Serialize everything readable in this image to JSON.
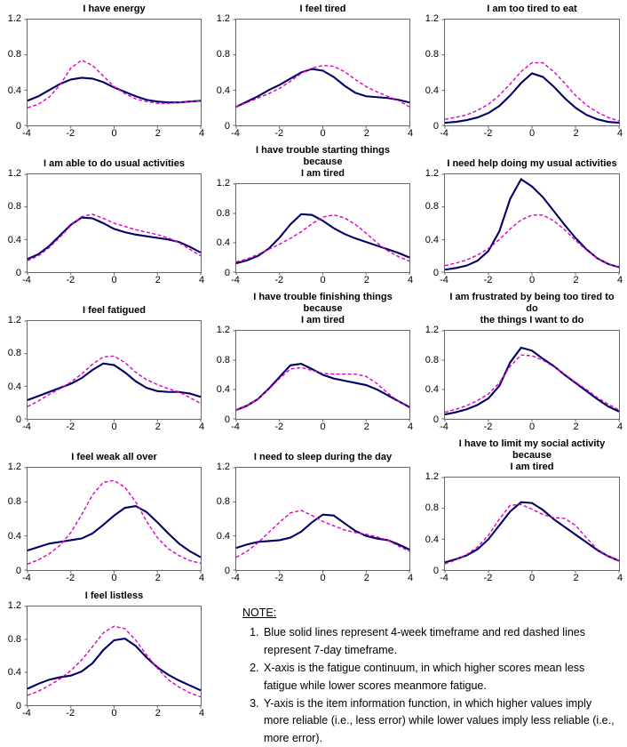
{
  "colors": {
    "navy_4week": "#000066",
    "magenta_7day": "#E000C0",
    "axis_line": "#666666"
  },
  "axis": {
    "x_range": [
      -4,
      4
    ],
    "y_range": [
      0,
      1.2
    ],
    "x_tick_labels": [
      "-4",
      "-2",
      "0",
      "2",
      "4"
    ],
    "y_tick_labels": [
      "1.2",
      "0.8",
      "0.4",
      "0"
    ],
    "grid": "off",
    "legend": "none (described in note)"
  },
  "note": {
    "heading": "NOTE:",
    "items": [
      "Blue solid lines represent 4-week timeframe and red dashed lines represent 7-day timeframe.",
      "X-axis is the fatigue continuum, in which higher scores mean less fatigue while lower scores meanmore fatigue.",
      "Y-axis is the item information function, in which higher values imply more reliable (i.e., less error) while lower values imply less reliable (i.e., more error)."
    ]
  },
  "chart_data": [
    {
      "type": "line",
      "title": "I have energy",
      "x": [
        -4,
        -3.5,
        -3,
        -2.5,
        -2,
        -1.5,
        -1,
        -0.5,
        0,
        0.5,
        1,
        1.5,
        2,
        2.5,
        3,
        3.5,
        4
      ],
      "series": [
        {
          "name": "4-week",
          "style": "solid",
          "color": "#000066",
          "values": [
            0.28,
            0.33,
            0.4,
            0.47,
            0.52,
            0.54,
            0.53,
            0.49,
            0.43,
            0.38,
            0.33,
            0.29,
            0.27,
            0.26,
            0.26,
            0.27,
            0.28
          ]
        },
        {
          "name": "7-day",
          "style": "dashed",
          "color": "#E000C0",
          "values": [
            0.2,
            0.24,
            0.32,
            0.46,
            0.65,
            0.74,
            0.68,
            0.56,
            0.44,
            0.36,
            0.3,
            0.27,
            0.25,
            0.25,
            0.26,
            0.27,
            0.28
          ]
        }
      ]
    },
    {
      "type": "line",
      "title": "I feel tired",
      "x": [
        -4,
        -3.5,
        -3,
        -2.5,
        -2,
        -1.5,
        -1,
        -0.5,
        0,
        0.5,
        1,
        1.5,
        2,
        2.5,
        3,
        3.5,
        4
      ],
      "series": [
        {
          "name": "4-week",
          "style": "solid",
          "color": "#000066",
          "values": [
            0.21,
            0.27,
            0.33,
            0.4,
            0.46,
            0.53,
            0.6,
            0.64,
            0.62,
            0.55,
            0.45,
            0.37,
            0.33,
            0.32,
            0.31,
            0.29,
            0.26
          ]
        },
        {
          "name": "7-day",
          "style": "dashed",
          "color": "#E000C0",
          "values": [
            0.21,
            0.26,
            0.31,
            0.36,
            0.42,
            0.5,
            0.59,
            0.65,
            0.68,
            0.67,
            0.61,
            0.52,
            0.44,
            0.38,
            0.33,
            0.28,
            0.21
          ]
        }
      ]
    },
    {
      "type": "line",
      "title": "I am too tired to eat",
      "x": [
        -4,
        -3.5,
        -3,
        -2.5,
        -2,
        -1.5,
        -1,
        -0.5,
        0,
        0.5,
        1,
        1.5,
        2,
        2.5,
        3,
        3.5,
        4
      ],
      "series": [
        {
          "name": "4-week",
          "style": "solid",
          "color": "#000066",
          "values": [
            0.03,
            0.04,
            0.06,
            0.09,
            0.14,
            0.22,
            0.34,
            0.48,
            0.59,
            0.55,
            0.44,
            0.31,
            0.2,
            0.12,
            0.07,
            0.04,
            0.03
          ]
        },
        {
          "name": "7-day",
          "style": "dashed",
          "color": "#E000C0",
          "values": [
            0.07,
            0.09,
            0.12,
            0.17,
            0.24,
            0.34,
            0.47,
            0.61,
            0.71,
            0.71,
            0.61,
            0.48,
            0.34,
            0.23,
            0.15,
            0.09,
            0.05
          ]
        }
      ]
    },
    {
      "type": "line",
      "title": "I am able to do usual activities",
      "x": [
        -4,
        -3.5,
        -3,
        -2.5,
        -2,
        -1.5,
        -1,
        -0.5,
        0,
        0.5,
        1,
        1.5,
        2,
        2.5,
        3,
        3.5,
        4
      ],
      "series": [
        {
          "name": "4-week",
          "style": "solid",
          "color": "#000066",
          "values": [
            0.16,
            0.22,
            0.32,
            0.45,
            0.58,
            0.67,
            0.66,
            0.6,
            0.53,
            0.49,
            0.46,
            0.44,
            0.42,
            0.4,
            0.37,
            0.31,
            0.24
          ]
        },
        {
          "name": "7-day",
          "style": "dashed",
          "color": "#E000C0",
          "values": [
            0.14,
            0.2,
            0.3,
            0.43,
            0.57,
            0.68,
            0.71,
            0.66,
            0.6,
            0.56,
            0.52,
            0.49,
            0.46,
            0.42,
            0.36,
            0.28,
            0.2
          ]
        }
      ]
    },
    {
      "type": "line",
      "title": "I have trouble starting things because",
      "title2": "I am tired",
      "x": [
        -4,
        -3.5,
        -3,
        -2.5,
        -2,
        -1.5,
        -1,
        -0.5,
        0,
        0.5,
        1,
        1.5,
        2,
        2.5,
        3,
        3.5,
        4
      ],
      "series": [
        {
          "name": "4-week",
          "style": "solid",
          "color": "#000066",
          "values": [
            0.12,
            0.16,
            0.22,
            0.32,
            0.47,
            0.65,
            0.79,
            0.78,
            0.7,
            0.6,
            0.52,
            0.46,
            0.41,
            0.36,
            0.31,
            0.26,
            0.2
          ]
        },
        {
          "name": "7-day",
          "style": "dashed",
          "color": "#E000C0",
          "values": [
            0.14,
            0.18,
            0.24,
            0.31,
            0.38,
            0.46,
            0.55,
            0.66,
            0.75,
            0.78,
            0.74,
            0.65,
            0.53,
            0.4,
            0.29,
            0.21,
            0.15
          ]
        }
      ]
    },
    {
      "type": "line",
      "title": "I need help doing my usual activities",
      "x": [
        -4,
        -3.5,
        -3,
        -2.5,
        -2,
        -1.5,
        -1,
        -0.5,
        0,
        0.5,
        1,
        1.5,
        2,
        2.5,
        3,
        3.5,
        4
      ],
      "series": [
        {
          "name": "4-week",
          "style": "solid",
          "color": "#000066",
          "values": [
            0.03,
            0.05,
            0.08,
            0.14,
            0.26,
            0.5,
            0.9,
            1.14,
            1.05,
            0.92,
            0.75,
            0.58,
            0.42,
            0.28,
            0.17,
            0.1,
            0.06
          ]
        },
        {
          "name": "7-day",
          "style": "dashed",
          "color": "#E000C0",
          "values": [
            0.08,
            0.11,
            0.15,
            0.21,
            0.29,
            0.4,
            0.53,
            0.64,
            0.7,
            0.7,
            0.63,
            0.52,
            0.39,
            0.27,
            0.17,
            0.1,
            0.06
          ]
        }
      ]
    },
    {
      "type": "line",
      "title": "I feel fatigued",
      "x": [
        -4,
        -3.5,
        -3,
        -2.5,
        -2,
        -1.5,
        -1,
        -0.5,
        0,
        0.5,
        1,
        1.5,
        2,
        2.5,
        3,
        3.5,
        4
      ],
      "series": [
        {
          "name": "4-week",
          "style": "solid",
          "color": "#000066",
          "values": [
            0.23,
            0.28,
            0.33,
            0.38,
            0.43,
            0.5,
            0.6,
            0.68,
            0.66,
            0.57,
            0.46,
            0.38,
            0.34,
            0.33,
            0.33,
            0.31,
            0.27
          ]
        },
        {
          "name": "7-day",
          "style": "dashed",
          "color": "#E000C0",
          "values": [
            0.15,
            0.22,
            0.3,
            0.37,
            0.45,
            0.55,
            0.67,
            0.76,
            0.77,
            0.69,
            0.57,
            0.48,
            0.42,
            0.37,
            0.33,
            0.26,
            0.19
          ]
        }
      ]
    },
    {
      "type": "line",
      "title": "I have trouble finishing things because",
      "title2": "I am tired",
      "x": [
        -4,
        -3.5,
        -3,
        -2.5,
        -2,
        -1.5,
        -1,
        -0.5,
        0,
        0.5,
        1,
        1.5,
        2,
        2.5,
        3,
        3.5,
        4
      ],
      "series": [
        {
          "name": "4-week",
          "style": "solid",
          "color": "#000066",
          "values": [
            0.12,
            0.18,
            0.27,
            0.41,
            0.57,
            0.73,
            0.75,
            0.68,
            0.6,
            0.55,
            0.52,
            0.49,
            0.46,
            0.4,
            0.32,
            0.24,
            0.16
          ]
        },
        {
          "name": "7-day",
          "style": "dashed",
          "color": "#E000C0",
          "values": [
            0.12,
            0.18,
            0.27,
            0.4,
            0.55,
            0.68,
            0.7,
            0.66,
            0.62,
            0.61,
            0.61,
            0.61,
            0.58,
            0.48,
            0.35,
            0.24,
            0.15
          ]
        }
      ]
    },
    {
      "type": "line",
      "title": "I am frustrated by being too tired to do",
      "title2": "the things I want to do",
      "x": [
        -4,
        -3.5,
        -3,
        -2.5,
        -2,
        -1.5,
        -1,
        -0.5,
        0,
        0.5,
        1,
        1.5,
        2,
        2.5,
        3,
        3.5,
        4
      ],
      "series": [
        {
          "name": "4-week",
          "style": "solid",
          "color": "#000066",
          "values": [
            0.06,
            0.09,
            0.13,
            0.19,
            0.28,
            0.45,
            0.77,
            0.97,
            0.93,
            0.82,
            0.72,
            0.6,
            0.49,
            0.38,
            0.27,
            0.17,
            0.1
          ]
        },
        {
          "name": "7-day",
          "style": "dashed",
          "color": "#E000C0",
          "values": [
            0.09,
            0.13,
            0.18,
            0.25,
            0.34,
            0.49,
            0.72,
            0.87,
            0.86,
            0.8,
            0.71,
            0.61,
            0.5,
            0.4,
            0.29,
            0.2,
            0.12
          ]
        }
      ]
    },
    {
      "type": "line",
      "title": "I feel weak all over",
      "x": [
        -4,
        -3.5,
        -3,
        -2.5,
        -2,
        -1.5,
        -1,
        -0.5,
        0,
        0.5,
        1,
        1.5,
        2,
        2.5,
        3,
        3.5,
        4
      ],
      "series": [
        {
          "name": "4-week",
          "style": "solid",
          "color": "#000066",
          "values": [
            0.23,
            0.27,
            0.31,
            0.33,
            0.35,
            0.37,
            0.43,
            0.53,
            0.64,
            0.73,
            0.75,
            0.68,
            0.56,
            0.43,
            0.31,
            0.22,
            0.15
          ]
        },
        {
          "name": "7-day",
          "style": "dashed",
          "color": "#E000C0",
          "values": [
            0.07,
            0.12,
            0.19,
            0.29,
            0.44,
            0.65,
            0.88,
            1.03,
            1.05,
            0.97,
            0.8,
            0.57,
            0.38,
            0.25,
            0.17,
            0.11,
            0.08
          ]
        }
      ]
    },
    {
      "type": "line",
      "title": "I need to sleep during the day",
      "x": [
        -4,
        -3.5,
        -3,
        -2.5,
        -2,
        -1.5,
        -1,
        -0.5,
        0,
        0.5,
        1,
        1.5,
        2,
        2.5,
        3,
        3.5,
        4
      ],
      "series": [
        {
          "name": "4-week",
          "style": "solid",
          "color": "#000066",
          "values": [
            0.26,
            0.3,
            0.33,
            0.34,
            0.35,
            0.38,
            0.45,
            0.56,
            0.65,
            0.64,
            0.55,
            0.46,
            0.4,
            0.37,
            0.35,
            0.3,
            0.24
          ]
        },
        {
          "name": "7-day",
          "style": "dashed",
          "color": "#E000C0",
          "values": [
            0.15,
            0.22,
            0.32,
            0.44,
            0.56,
            0.67,
            0.7,
            0.64,
            0.57,
            0.52,
            0.47,
            0.44,
            0.42,
            0.39,
            0.35,
            0.28,
            0.22
          ]
        }
      ]
    },
    {
      "type": "line",
      "title": "I have to limit my social activity because",
      "title2": "I am tired",
      "x": [
        -4,
        -3.5,
        -3,
        -2.5,
        -2,
        -1.5,
        -1,
        -0.5,
        0,
        0.5,
        1,
        1.5,
        2,
        2.5,
        3,
        3.5,
        4
      ],
      "series": [
        {
          "name": "4-week",
          "style": "solid",
          "color": "#000066",
          "values": [
            0.1,
            0.14,
            0.19,
            0.27,
            0.4,
            0.58,
            0.76,
            0.88,
            0.87,
            0.78,
            0.66,
            0.56,
            0.46,
            0.36,
            0.26,
            0.18,
            0.12
          ]
        },
        {
          "name": "7-day",
          "style": "dashed",
          "color": "#E000C0",
          "values": [
            0.08,
            0.13,
            0.2,
            0.3,
            0.45,
            0.66,
            0.84,
            0.85,
            0.79,
            0.72,
            0.68,
            0.67,
            0.58,
            0.42,
            0.27,
            0.18,
            0.12
          ]
        }
      ]
    },
    {
      "type": "line",
      "title": "I feel listless",
      "x": [
        -4,
        -3.5,
        -3,
        -2.5,
        -2,
        -1.5,
        -1,
        -0.5,
        0,
        0.5,
        1,
        1.5,
        2,
        2.5,
        3,
        3.5,
        4
      ],
      "series": [
        {
          "name": "4-week",
          "style": "solid",
          "color": "#000066",
          "values": [
            0.2,
            0.26,
            0.31,
            0.34,
            0.36,
            0.41,
            0.51,
            0.67,
            0.79,
            0.81,
            0.72,
            0.58,
            0.46,
            0.37,
            0.3,
            0.24,
            0.18
          ]
        },
        {
          "name": "7-day",
          "style": "dashed",
          "color": "#E000C0",
          "values": [
            0.12,
            0.17,
            0.24,
            0.32,
            0.42,
            0.55,
            0.71,
            0.88,
            0.96,
            0.93,
            0.79,
            0.61,
            0.45,
            0.31,
            0.22,
            0.15,
            0.1
          ]
        }
      ]
    }
  ]
}
